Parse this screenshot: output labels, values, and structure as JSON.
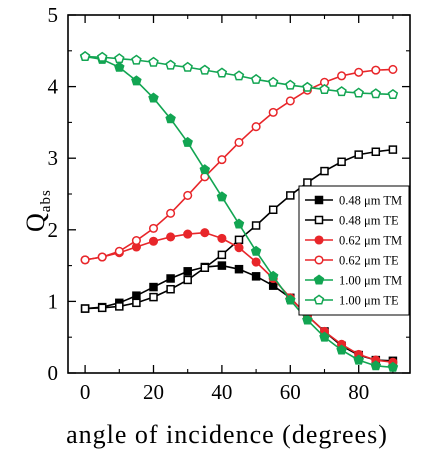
{
  "chart_data": {
    "type": "line",
    "xlabel": "angle of incidence (degrees)",
    "ylabel_main": "Q",
    "ylabel_sub": "abs",
    "xlim": [
      -5,
      95
    ],
    "ylim": [
      0,
      5
    ],
    "xticks": [
      0,
      20,
      40,
      60,
      80
    ],
    "yticks": [
      0,
      1,
      2,
      3,
      4,
      5
    ],
    "grid": false,
    "legend_position": "right",
    "x": [
      0,
      5,
      10,
      15,
      20,
      25,
      30,
      35,
      40,
      45,
      50,
      55,
      60,
      65,
      70,
      75,
      80,
      85,
      90
    ],
    "series": [
      {
        "name": "0.48 μm TM",
        "color": "#000000",
        "marker": "square",
        "filled": true,
        "values": [
          0.9,
          0.92,
          0.98,
          1.08,
          1.2,
          1.32,
          1.42,
          1.48,
          1.5,
          1.45,
          1.35,
          1.22,
          1.05,
          0.8,
          0.58,
          0.38,
          0.25,
          0.18,
          0.17
        ]
      },
      {
        "name": "0.48 μm TE",
        "color": "#000000",
        "marker": "square",
        "filled": false,
        "values": [
          0.9,
          0.91,
          0.93,
          0.98,
          1.06,
          1.17,
          1.3,
          1.47,
          1.65,
          1.86,
          2.06,
          2.28,
          2.48,
          2.66,
          2.82,
          2.95,
          3.05,
          3.09,
          3.12
        ]
      },
      {
        "name": "0.62 μm TM",
        "color": "#e8262a",
        "marker": "circle",
        "filled": true,
        "values": [
          1.58,
          1.62,
          1.68,
          1.76,
          1.84,
          1.9,
          1.94,
          1.96,
          1.88,
          1.75,
          1.55,
          1.32,
          1.05,
          0.8,
          0.58,
          0.4,
          0.26,
          0.18,
          0.15
        ]
      },
      {
        "name": "0.62 μm TE",
        "color": "#e8262a",
        "marker": "circle",
        "filled": false,
        "values": [
          1.58,
          1.62,
          1.7,
          1.85,
          2.02,
          2.23,
          2.48,
          2.74,
          2.98,
          3.22,
          3.44,
          3.64,
          3.8,
          3.95,
          4.06,
          4.15,
          4.2,
          4.23,
          4.24
        ]
      },
      {
        "name": "1.00 μm TM",
        "color": "#12a552",
        "marker": "pentagon",
        "filled": true,
        "values": [
          4.42,
          4.38,
          4.27,
          4.08,
          3.84,
          3.55,
          3.22,
          2.84,
          2.46,
          2.08,
          1.7,
          1.35,
          1.02,
          0.74,
          0.5,
          0.32,
          0.18,
          0.1,
          0.08
        ]
      },
      {
        "name": "1.00 μm TE",
        "color": "#12a552",
        "marker": "pentagon",
        "filled": false,
        "values": [
          4.42,
          4.41,
          4.39,
          4.37,
          4.34,
          4.3,
          4.27,
          4.23,
          4.19,
          4.15,
          4.1,
          4.06,
          4.02,
          3.99,
          3.96,
          3.93,
          3.91,
          3.9,
          3.89
        ]
      }
    ]
  }
}
